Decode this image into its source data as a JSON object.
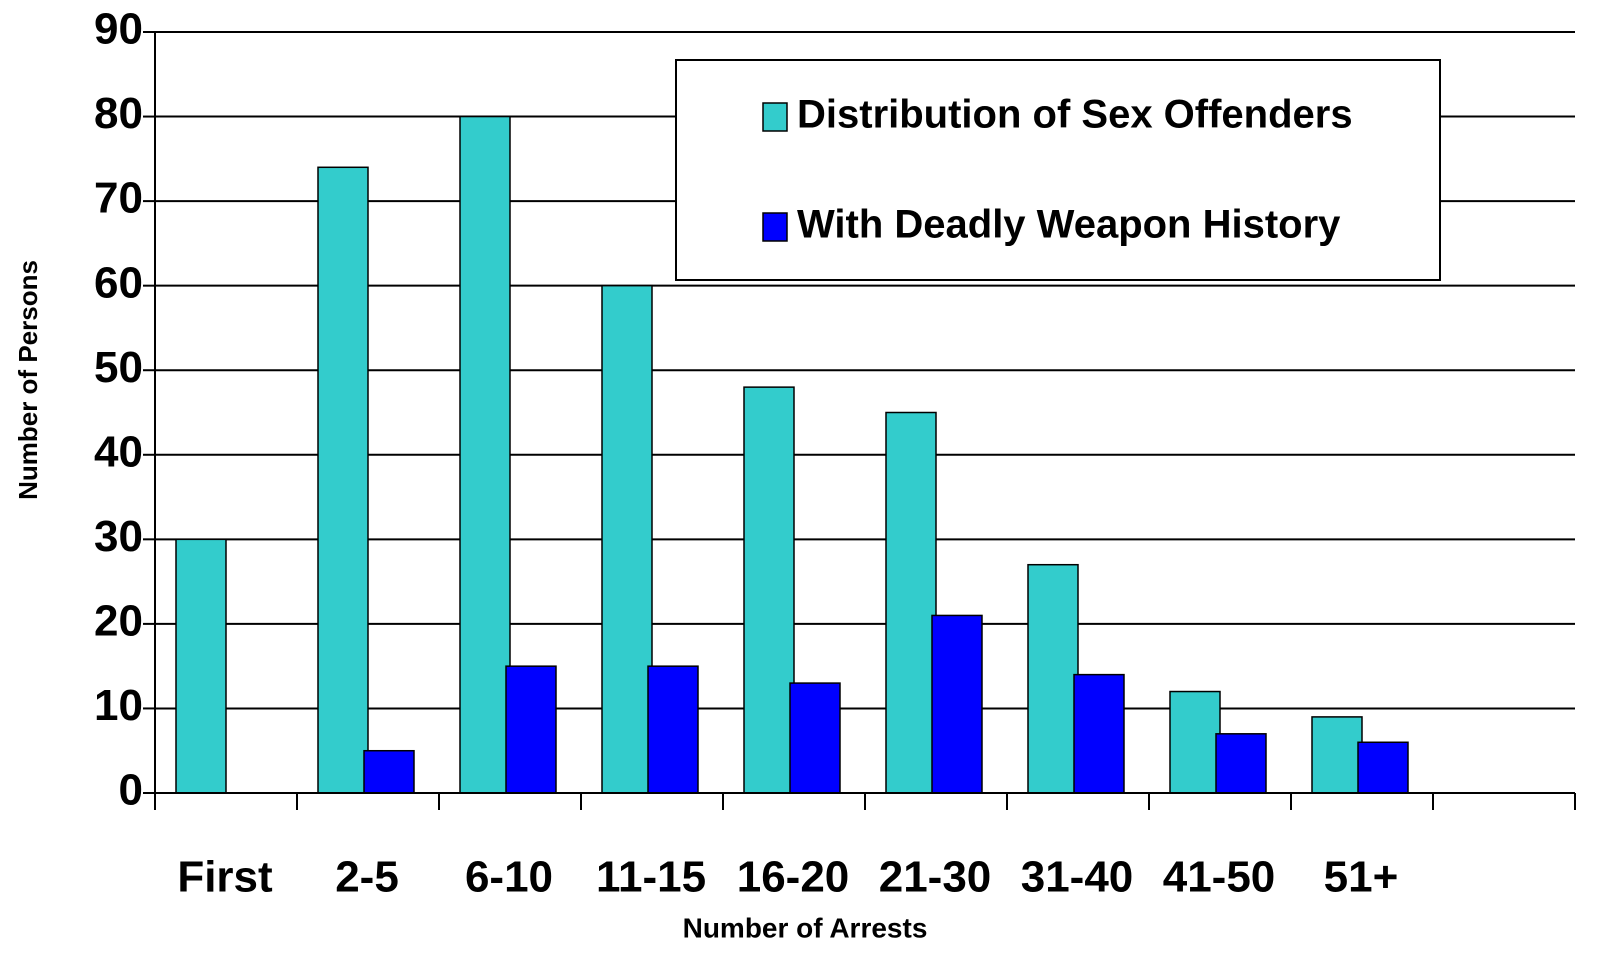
{
  "chart_data": {
    "type": "bar",
    "categories": [
      "First",
      "2-5",
      "6-10",
      "11-15",
      "16-20",
      "21-30",
      "31-40",
      "41-50",
      "51+",
      null
    ],
    "series": [
      {
        "name": "Distribution of Sex Offenders",
        "color": "#33cccc",
        "values": [
          30,
          74,
          80,
          60,
          48,
          45,
          27,
          12,
          9,
          null
        ]
      },
      {
        "name": "With Deadly Weapon History",
        "color": "#0000ff",
        "values": [
          0,
          5,
          15,
          15,
          13,
          21,
          14,
          7,
          6,
          null
        ]
      }
    ],
    "xlabel": "Number of Arrests",
    "ylabel": "Number of Persons",
    "ylim": [
      0,
      90
    ],
    "yticks": [
      0,
      10,
      20,
      30,
      40,
      50,
      60,
      70,
      80,
      90
    ],
    "grid": true,
    "legend": "upper right"
  }
}
